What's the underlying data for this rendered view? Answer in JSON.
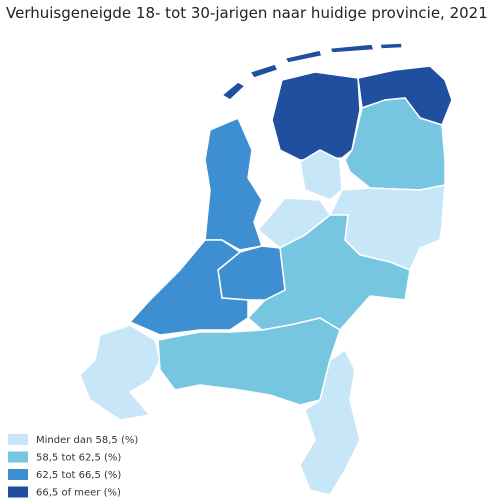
{
  "title": "Verhuisgeneigde 18- tot 30-jarigen naar huidige provincie, 2021",
  "legend": [
    {
      "label": "Minder dan 58,5 (%)",
      "color": "#c7e7f8"
    },
    {
      "label": "58,5 tot 62,5 (%)",
      "color": "#76c6e2"
    },
    {
      "label": "62,5 tot 66,5 (%)",
      "color": "#3d8fd1"
    },
    {
      "label": "66,5 of meer (%)",
      "color": "#1f4f9e"
    }
  ]
}
